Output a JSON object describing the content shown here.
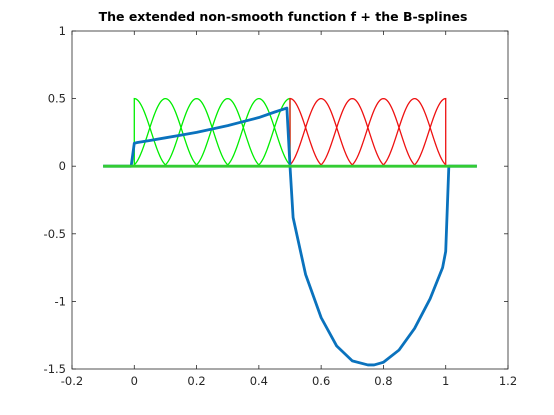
{
  "chart_data": {
    "type": "line",
    "title": "The extended non-smooth function f + the B-splines",
    "xlabel": "",
    "ylabel": "",
    "xlim": [
      -0.2,
      1.2
    ],
    "ylim": [
      -1.5,
      1
    ],
    "x_ticks": [
      "-0.2",
      "0",
      "0.2",
      "0.4",
      "0.6",
      "0.8",
      "1",
      "1.2"
    ],
    "x_tick_values": [
      -0.2,
      0,
      0.2,
      0.4,
      0.6,
      0.8,
      1,
      1.2
    ],
    "y_ticks": [
      "1",
      "0.5",
      "0",
      "-0.5",
      "-1",
      "-1.5"
    ],
    "y_tick_values": [
      1,
      0.5,
      0,
      -0.5,
      -1,
      -1.5
    ],
    "grid": false,
    "legend": "none",
    "series": [
      {
        "color": "#00ee00",
        "kind": "spline-group",
        "centers": [
          0.0,
          0.1,
          0.2,
          0.3,
          0.4,
          0.5
        ],
        "peak": 0.5,
        "half_width": 0.11,
        "clip": [
          0.0,
          0.5
        ],
        "edge_height": 0.43
      },
      {
        "color": "#ee1111",
        "kind": "spline-group",
        "centers": [
          0.5,
          0.6,
          0.7,
          0.8,
          0.9,
          1.0
        ],
        "peak": 0.5,
        "half_width": 0.11,
        "clip": [
          0.5,
          1.0
        ],
        "edge_height": 0.43
      },
      {
        "color": "#0a72bd",
        "kind": "function",
        "x": [
          -0.1,
          -0.01,
          0.0,
          0.01,
          0.05,
          0.1,
          0.15,
          0.2,
          0.25,
          0.3,
          0.35,
          0.4,
          0.45,
          0.49,
          0.5,
          0.51,
          0.55,
          0.6,
          0.65,
          0.7,
          0.75,
          0.77,
          0.8,
          0.85,
          0.9,
          0.95,
          0.99,
          1.0,
          1.01,
          1.1
        ],
        "y": [
          0.0,
          0.0,
          0.17,
          0.175,
          0.19,
          0.21,
          0.23,
          0.25,
          0.275,
          0.3,
          0.33,
          0.36,
          0.4,
          0.43,
          0.0,
          -0.38,
          -0.8,
          -1.12,
          -1.33,
          -1.44,
          -1.47,
          -1.47,
          -1.45,
          -1.36,
          -1.2,
          -0.98,
          -0.75,
          -0.63,
          0.0,
          0.0
        ]
      },
      {
        "color": "#33cc33",
        "kind": "baseline",
        "x": [
          -0.1,
          1.1
        ],
        "y": [
          0,
          0
        ]
      }
    ]
  }
}
